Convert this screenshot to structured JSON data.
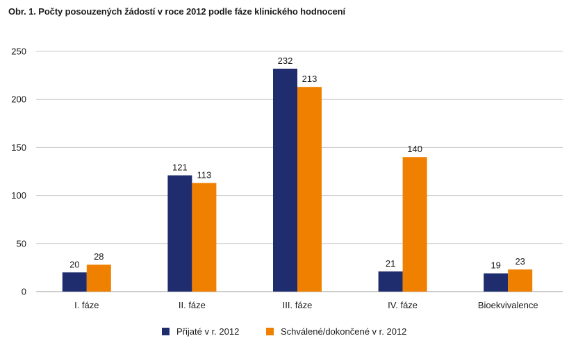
{
  "chart_data": {
    "type": "bar",
    "title": "Obr. 1. Počty posouzených žádostí v roce 2012 podle fáze klinického hodnocení",
    "categories": [
      "I. fáze",
      "II. fáze",
      "III. fáze",
      "IV. fáze",
      "Bioekvivalence"
    ],
    "series": [
      {
        "name": "Přijaté v r. 2012",
        "color": "#1f2d6e",
        "values": [
          20,
          121,
          232,
          21,
          19
        ]
      },
      {
        "name": "Schválené/dokončené v r. 2012",
        "color": "#f08000",
        "values": [
          28,
          113,
          213,
          140,
          23
        ]
      }
    ],
    "yticks": [
      "0",
      "50",
      "100",
      "150",
      "200",
      "250"
    ],
    "ylim": [
      0,
      250
    ],
    "grid": true,
    "legend_position": "bottom"
  }
}
